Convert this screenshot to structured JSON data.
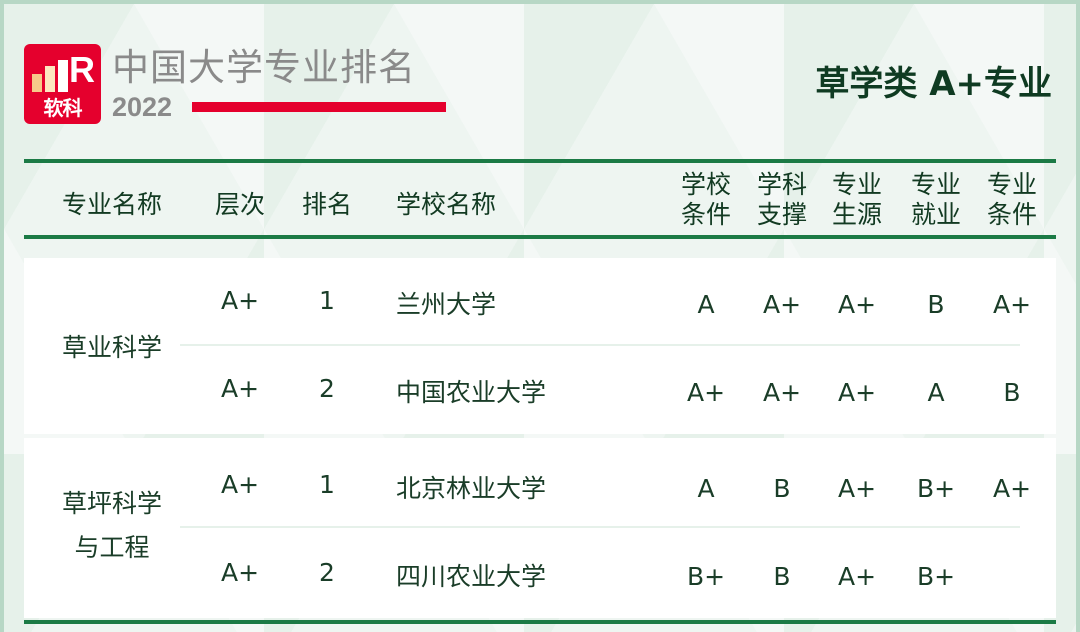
{
  "logo": {
    "letters": "R",
    "name": "软科",
    "colors": {
      "red": "#e5002d",
      "bar1": "#f7c98a",
      "bar2": "#fde7c0"
    }
  },
  "header": {
    "brand": "中国大学专业排名",
    "year": "2022",
    "title": "草学类 A+专业"
  },
  "table": {
    "columns": [
      "专业名称",
      "层次",
      "排名",
      "学校名称"
    ],
    "metric_columns": [
      [
        "学校",
        "条件"
      ],
      [
        "学科",
        "支撑"
      ],
      [
        "专业",
        "生源"
      ],
      [
        "专业",
        "就业"
      ],
      [
        "专业",
        "条件"
      ]
    ],
    "groups": [
      {
        "major": [
          "草业科学"
        ],
        "rows": [
          {
            "level": "A+",
            "rank": "1",
            "school": "兰州大学",
            "metrics": [
              "A",
              "A+",
              "A+",
              "B",
              "A+"
            ]
          },
          {
            "level": "A+",
            "rank": "2",
            "school": "中国农业大学",
            "metrics": [
              "A+",
              "A+",
              "A+",
              "A",
              "B"
            ]
          }
        ]
      },
      {
        "major": [
          "草坪科学",
          "与工程"
        ],
        "rows": [
          {
            "level": "A+",
            "rank": "1",
            "school": "北京林业大学",
            "metrics": [
              "A",
              "B",
              "A+",
              "B+",
              "A+"
            ]
          },
          {
            "level": "A+",
            "rank": "2",
            "school": "四川农业大学",
            "metrics": [
              "B+",
              "B",
              "A+",
              "B+",
              ""
            ]
          }
        ]
      }
    ]
  },
  "colors": {
    "accent_green": "#1b7a45",
    "text": "#123a22",
    "border": "#b7d7c5"
  }
}
